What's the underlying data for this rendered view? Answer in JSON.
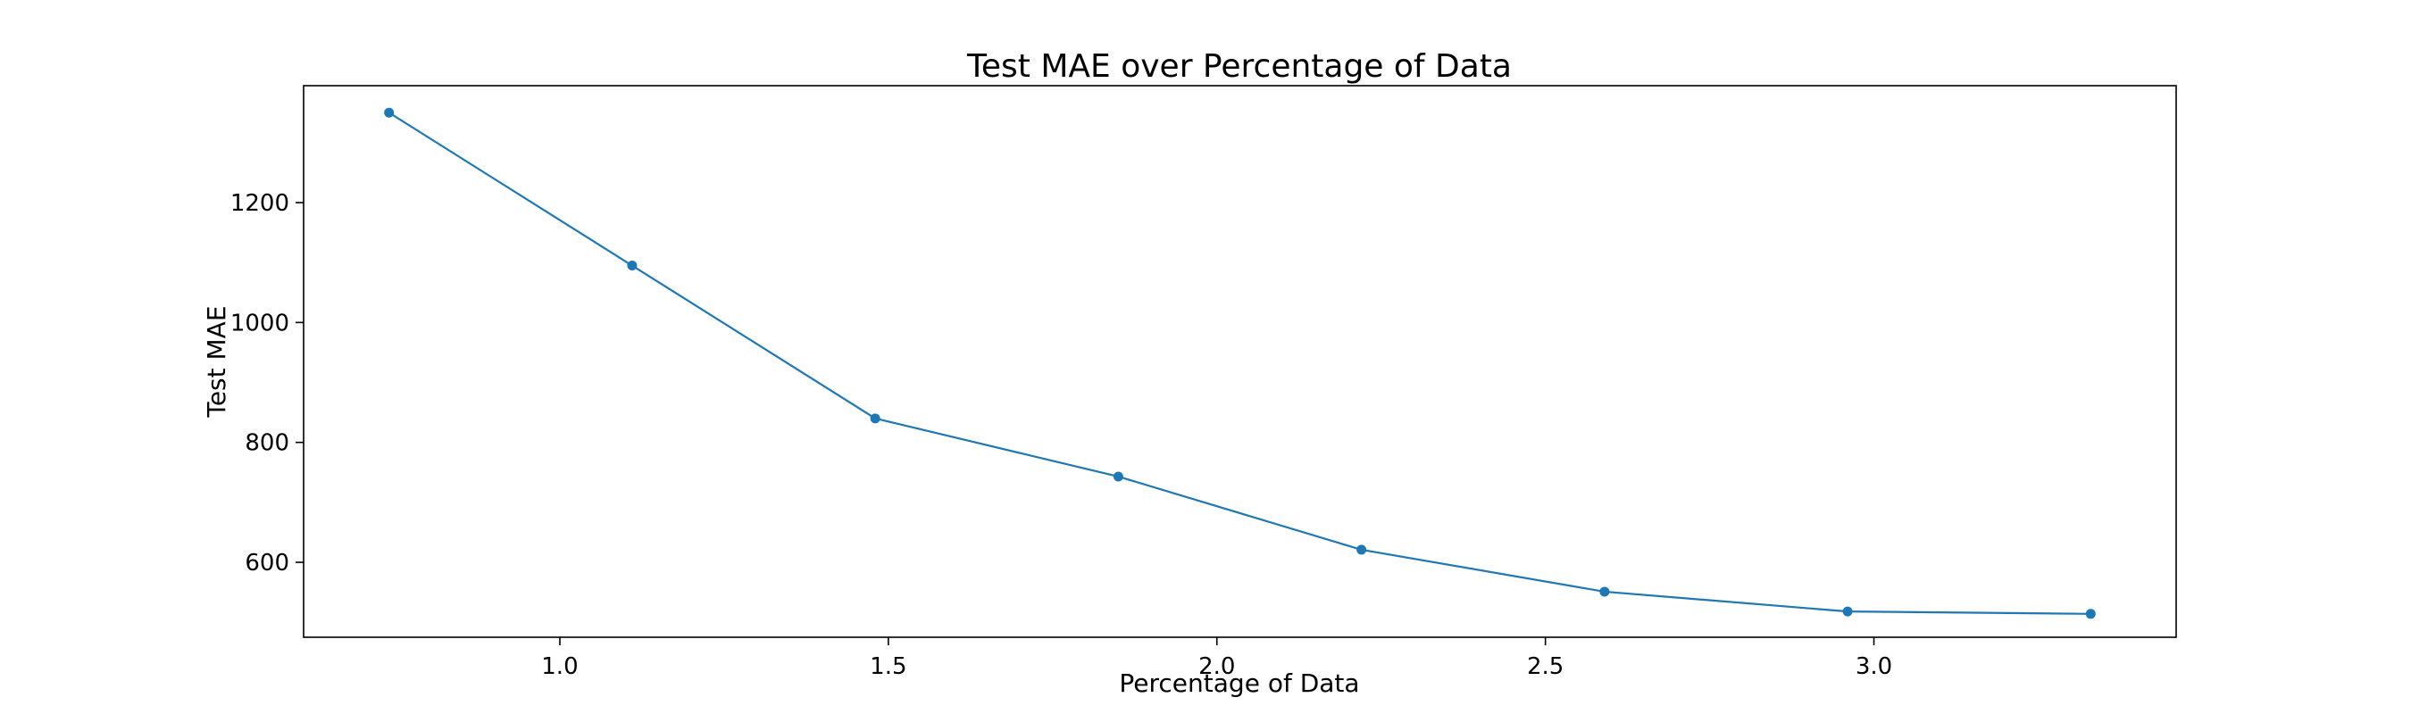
{
  "chart_data": {
    "type": "line",
    "title": "Test MAE over Percentage of Data",
    "xlabel": "Percentage of Data",
    "ylabel": "Test MAE",
    "xlim": [
      0.61,
      3.46
    ],
    "ylim": [
      475,
      1395
    ],
    "xticks": [
      1.0,
      1.5,
      2.0,
      2.5,
      3.0
    ],
    "xtick_labels": [
      "1.0",
      "1.5",
      "2.0",
      "2.5",
      "3.0"
    ],
    "yticks": [
      600,
      800,
      1000,
      1200
    ],
    "ytick_labels": [
      "600",
      "800",
      "1000",
      "1200"
    ],
    "grid": false,
    "series": [
      {
        "color": "#1f77b4",
        "marker": "circle",
        "x": [
          0.74,
          1.11,
          1.48,
          1.85,
          2.22,
          2.59,
          2.96,
          3.33
        ],
        "y": [
          1350,
          1095,
          840,
          743,
          621,
          551,
          518,
          514
        ]
      }
    ]
  }
}
